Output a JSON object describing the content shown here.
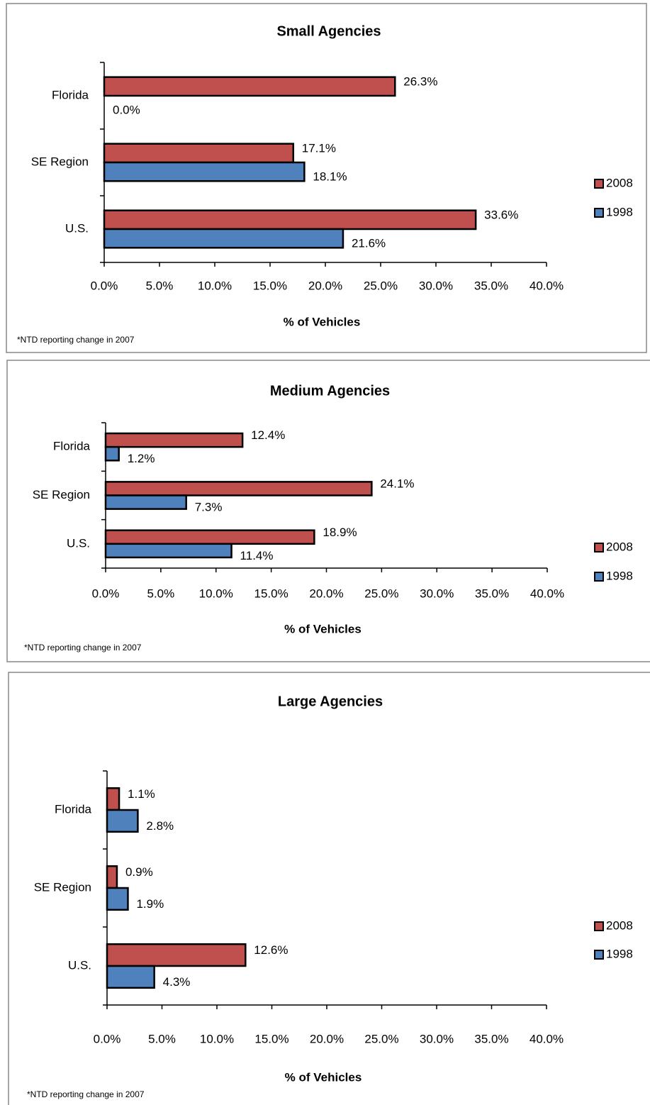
{
  "chart_data": [
    {
      "type": "bar",
      "orientation": "horizontal",
      "title": "Small Agencies",
      "x_label": "% of Vehicles",
      "note": "*NTD reporting change in 2007",
      "categories": [
        "Florida",
        "SE Region",
        "U.S."
      ],
      "series": [
        {
          "name": "2008",
          "color": "#c0504d",
          "values": [
            26.3,
            17.1,
            33.6
          ],
          "value_labels": [
            "26.3%",
            "17.1%",
            "33.6%"
          ]
        },
        {
          "name": "1998",
          "color": "#4f81bd",
          "values": [
            0.0,
            18.1,
            21.6
          ],
          "value_labels": [
            "0.0%",
            "18.1%",
            "21.6%"
          ]
        }
      ],
      "xlim": [
        0,
        40
      ],
      "xticks": [
        {
          "value": 0,
          "label": "0.0%"
        },
        {
          "value": 5,
          "label": "5.0%"
        },
        {
          "value": 10,
          "label": "10.0%"
        },
        {
          "value": 15,
          "label": "15.0%"
        },
        {
          "value": 20,
          "label": "20.0%"
        },
        {
          "value": 25,
          "label": "25.0%"
        },
        {
          "value": 30,
          "label": "30.0%"
        },
        {
          "value": 35,
          "label": "35.0%"
        },
        {
          "value": 40,
          "label": "40.0%"
        }
      ],
      "legend": "right"
    },
    {
      "type": "bar",
      "orientation": "horizontal",
      "title": "Medium Agencies",
      "x_label": "% of Vehicles",
      "note": "*NTD reporting change in 2007",
      "categories": [
        "Florida",
        "SE Region",
        "U.S."
      ],
      "series": [
        {
          "name": "2008",
          "color": "#c0504d",
          "values": [
            12.4,
            24.1,
            18.9
          ],
          "value_labels": [
            "12.4%",
            "24.1%",
            "18.9%"
          ]
        },
        {
          "name": "1998",
          "color": "#4f81bd",
          "values": [
            1.2,
            7.3,
            11.4
          ],
          "value_labels": [
            "1.2%",
            "7.3%",
            "11.4%"
          ]
        }
      ],
      "xlim": [
        0,
        40
      ],
      "xticks": [
        {
          "value": 0,
          "label": "0.0%"
        },
        {
          "value": 5,
          "label": "5.0%"
        },
        {
          "value": 10,
          "label": "10.0%"
        },
        {
          "value": 15,
          "label": "15.0%"
        },
        {
          "value": 20,
          "label": "20.0%"
        },
        {
          "value": 25,
          "label": "25.0%"
        },
        {
          "value": 30,
          "label": "30.0%"
        },
        {
          "value": 35,
          "label": "35.0%"
        },
        {
          "value": 40,
          "label": "40.0%"
        }
      ],
      "legend": "right"
    },
    {
      "type": "bar",
      "orientation": "horizontal",
      "title": "Large Agencies",
      "x_label": "% of Vehicles",
      "note": "*NTD reporting change in 2007",
      "categories": [
        "Florida",
        "SE Region",
        "U.S."
      ],
      "series": [
        {
          "name": "2008",
          "color": "#c0504d",
          "values": [
            1.1,
            0.9,
            12.6
          ],
          "value_labels": [
            "1.1%",
            "0.9%",
            "12.6%"
          ]
        },
        {
          "name": "1998",
          "color": "#4f81bd",
          "values": [
            2.8,
            1.9,
            4.3
          ],
          "value_labels": [
            "2.8%",
            "1.9%",
            "4.3%"
          ]
        }
      ],
      "xlim": [
        0,
        40
      ],
      "xticks": [
        {
          "value": 0,
          "label": "0.0%"
        },
        {
          "value": 5,
          "label": "5.0%"
        },
        {
          "value": 10,
          "label": "10.0%"
        },
        {
          "value": 15,
          "label": "15.0%"
        },
        {
          "value": 20,
          "label": "20.0%"
        },
        {
          "value": 25,
          "label": "25.0%"
        },
        {
          "value": 30,
          "label": "30.0%"
        },
        {
          "value": 35,
          "label": "35.0%"
        },
        {
          "value": 40,
          "label": "40.0%"
        }
      ],
      "legend": "right"
    }
  ]
}
